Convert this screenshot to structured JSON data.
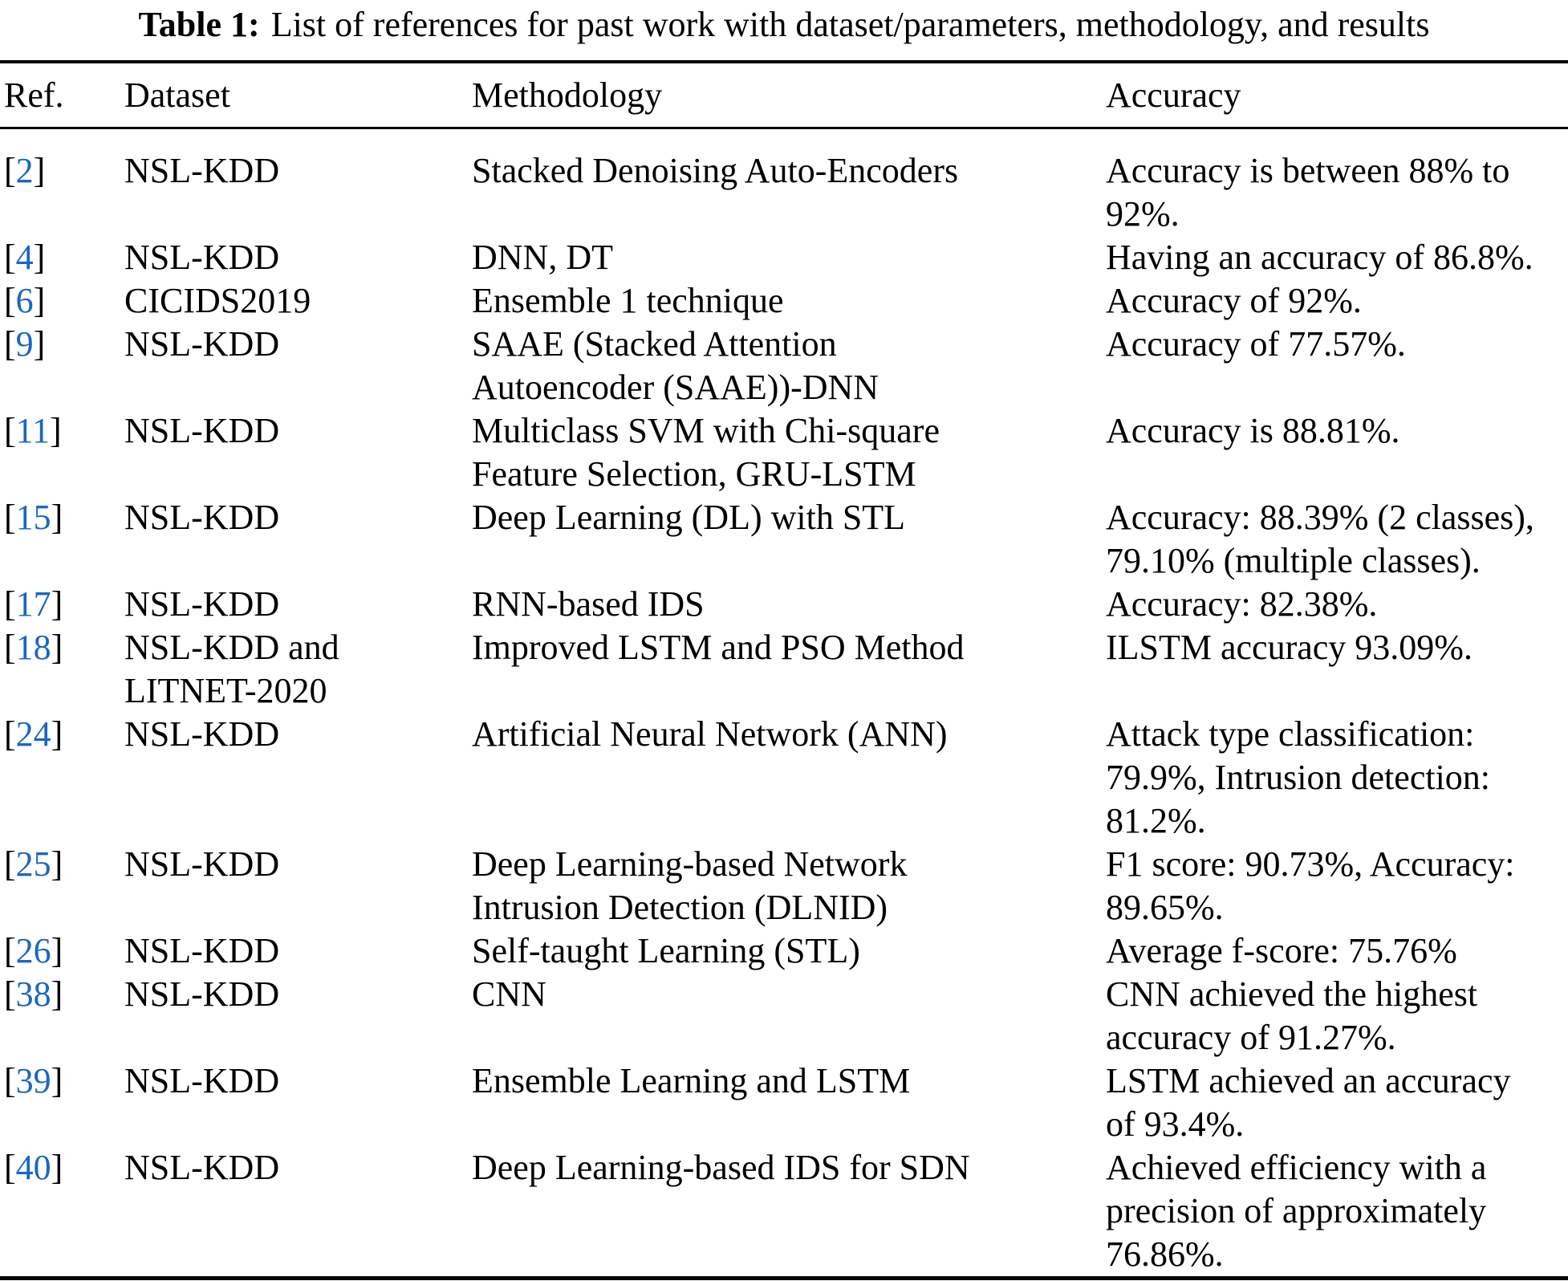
{
  "colors": {
    "citation_link": "#1a66c5",
    "text": "#000000",
    "rule": "#000000"
  },
  "caption": {
    "label": "Table 1:",
    "text": "List of references for past work with dataset/parameters, methodology, and results"
  },
  "table": {
    "citation": {
      "open": "[",
      "close": "]"
    },
    "headers": [
      "Ref.",
      "Dataset",
      "Methodology",
      "Accuracy"
    ],
    "rows": [
      {
        "ref": "2",
        "dataset": "NSL-KDD",
        "methodology": "Stacked Denoising Auto-Encoders",
        "accuracy": "Accuracy is between 88% to\n92%."
      },
      {
        "ref": "4",
        "dataset": "NSL-KDD",
        "methodology": "DNN, DT",
        "accuracy": "Having an accuracy of 86.8%."
      },
      {
        "ref": "6",
        "dataset": "CICIDS2019",
        "methodology": "Ensemble 1 technique",
        "accuracy": "Accuracy of 92%."
      },
      {
        "ref": "9",
        "dataset": "NSL-KDD",
        "methodology": "SAAE (Stacked Attention\nAutoencoder (SAAE))-DNN",
        "accuracy": "Accuracy of 77.57%."
      },
      {
        "ref": "11",
        "dataset": "NSL-KDD",
        "methodology": "Multiclass SVM with Chi-square\nFeature Selection, GRU-LSTM",
        "accuracy": "Accuracy is 88.81%."
      },
      {
        "ref": "15",
        "dataset": "NSL-KDD",
        "methodology": "Deep Learning (DL) with STL",
        "accuracy": "Accuracy: 88.39% (2 classes),\n79.10% (multiple classes)."
      },
      {
        "ref": "17",
        "dataset": "NSL-KDD",
        "methodology": "RNN-based IDS",
        "accuracy": "Accuracy: 82.38%."
      },
      {
        "ref": "18",
        "dataset": "NSL-KDD and\nLITNET-2020",
        "methodology": "Improved LSTM and PSO Method",
        "accuracy": "ILSTM accuracy 93.09%."
      },
      {
        "ref": "24",
        "dataset": "NSL-KDD",
        "methodology": "Artificial Neural Network (ANN)",
        "accuracy": "Attack type classification:\n79.9%, Intrusion detection:\n81.2%."
      },
      {
        "ref": "25",
        "dataset": "NSL-KDD",
        "methodology": "Deep Learning-based Network\nIntrusion Detection (DLNID)",
        "accuracy": "F1 score: 90.73%, Accuracy:\n89.65%."
      },
      {
        "ref": "26",
        "dataset": "NSL-KDD",
        "methodology": "Self-taught Learning (STL)",
        "accuracy": "Average f-score: 75.76%"
      },
      {
        "ref": "38",
        "dataset": "NSL-KDD",
        "methodology": "CNN",
        "accuracy": "CNN achieved the highest\naccuracy of 91.27%."
      },
      {
        "ref": "39",
        "dataset": "NSL-KDD",
        "methodology": "Ensemble Learning and LSTM",
        "accuracy": "LSTM achieved an accuracy\nof 93.4%."
      },
      {
        "ref": "40",
        "dataset": "NSL-KDD",
        "methodology": "Deep Learning-based IDS for SDN",
        "accuracy": "Achieved efficiency with a\nprecision of approximately\n76.86%."
      }
    ]
  }
}
